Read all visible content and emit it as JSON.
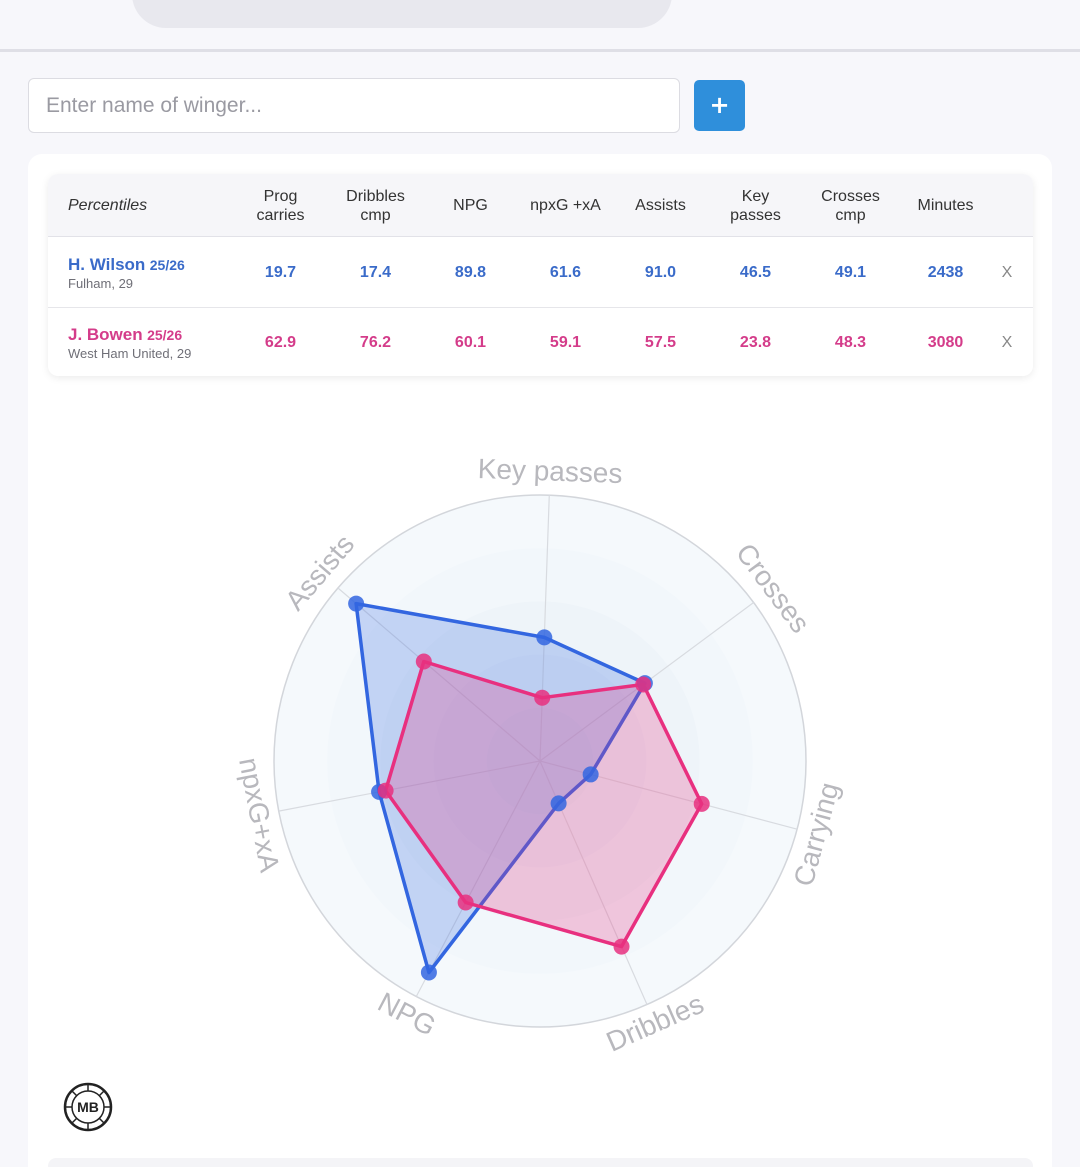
{
  "search": {
    "placeholder": "Enter name of winger..."
  },
  "add_button": {
    "label": "+"
  },
  "table": {
    "corner_label": "Percentiles",
    "columns": [
      "Prog\ncarries",
      "Dribbles\ncmp",
      "NPG",
      "npxG +xA",
      "Assists",
      "Key\npasses",
      "Crosses\ncmp",
      "Minutes"
    ],
    "rows": [
      {
        "name": "H. Wilson",
        "season": "25/26",
        "meta": "Fulham, 29",
        "values": [
          "19.7",
          "17.4",
          "89.8",
          "61.6",
          "91.0",
          "46.5",
          "49.1",
          "2438"
        ],
        "remove": "X",
        "color": "#3a6bc9"
      },
      {
        "name": "J. Bowen",
        "season": "25/26",
        "meta": "West Ham United, 29",
        "values": [
          "62.9",
          "76.2",
          "60.1",
          "59.1",
          "57.5",
          "23.8",
          "48.3",
          "3080"
        ],
        "remove": "X",
        "color": "#d43c8a"
      }
    ]
  },
  "chart_data": {
    "type": "radar",
    "axes": [
      "Key passes",
      "Crosses",
      "Carrying",
      "Dribbles",
      "NPG",
      "npxG+xA",
      "Assists"
    ],
    "range": [
      0,
      100
    ],
    "rings": 5,
    "series": [
      {
        "name": "H. Wilson",
        "color": "#3366e0",
        "values": [
          46.5,
          49.1,
          19.7,
          17.4,
          89.8,
          61.6,
          91.0
        ]
      },
      {
        "name": "J. Bowen",
        "color": "#e8307f",
        "values": [
          23.8,
          48.3,
          62.9,
          76.2,
          60.1,
          59.1,
          57.5
        ]
      }
    ]
  },
  "logo": {
    "text": "MB",
    "icon": "mb-logo-icon"
  }
}
